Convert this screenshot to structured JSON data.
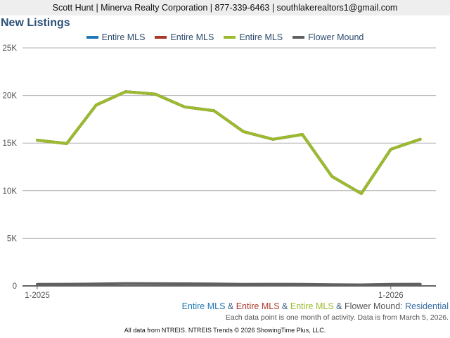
{
  "header": {
    "contact": "Scott Hunt | Minerva Realty Corporation | 877-339-6463 | southlakerealtors1@gmail.com"
  },
  "title": "New Listings",
  "legend": [
    {
      "label": "Entire MLS",
      "color": "#1f77b4"
    },
    {
      "label": "Entire MLS",
      "color": "#a8382a"
    },
    {
      "label": "Entire MLS",
      "color": "#9bbb2e"
    },
    {
      "label": "Flower Mound",
      "color": "#606060"
    }
  ],
  "caption": {
    "parts": [
      {
        "text": "Entire MLS",
        "color": "#1f77b4"
      },
      {
        "text": " & ",
        "color": "#3a5f86"
      },
      {
        "text": "Entire MLS",
        "color": "#a8382a"
      },
      {
        "text": " & ",
        "color": "#3a5f86"
      },
      {
        "text": "Entire MLS",
        "color": "#9bbb2e"
      },
      {
        "text": " & ",
        "color": "#3a5f86"
      },
      {
        "text": "Flower Mound",
        "color": "#555555"
      },
      {
        "text": ": Residential",
        "color": "#3a6ea5"
      }
    ]
  },
  "note": "Each data point is one month of activity. Data is from March 5, 2026.",
  "footer": "All data from NTREIS. NTREIS Trends © 2026 ShowingTime Plus, LLC.",
  "chart_data": {
    "type": "line",
    "title": "New Listings",
    "xlabel": "",
    "ylabel": "",
    "ylim": [
      0,
      25000
    ],
    "yticks": [
      "0",
      "5K",
      "10K",
      "15K",
      "20K",
      "25K"
    ],
    "ytick_values": [
      0,
      5000,
      10000,
      15000,
      20000,
      25000
    ],
    "xtick_labels": [
      {
        "index": 0,
        "label": "1-2025"
      },
      {
        "index": 12,
        "label": "1-2026"
      }
    ],
    "grid": true,
    "legend_position": "top",
    "x": [
      "1-2025",
      "2-2025",
      "3-2025",
      "4-2025",
      "5-2025",
      "6-2025",
      "7-2025",
      "8-2025",
      "9-2025",
      "10-2025",
      "11-2025",
      "12-2025",
      "1-2026",
      "2-2026"
    ],
    "series": [
      {
        "name": "Entire MLS",
        "color": "#1f77b4",
        "values": [
          15300,
          14950,
          19000,
          20400,
          20150,
          18800,
          18400,
          16200,
          15400,
          15900,
          11500,
          9700,
          14350,
          15400
        ]
      },
      {
        "name": "Entire MLS",
        "color": "#a8382a",
        "values": [
          15300,
          14950,
          19000,
          20400,
          20150,
          18800,
          18400,
          16200,
          15400,
          15900,
          11500,
          9700,
          14350,
          15400
        ]
      },
      {
        "name": "Entire MLS",
        "color": "#9bbb2e",
        "values": [
          15300,
          14950,
          19000,
          20400,
          20150,
          18800,
          18400,
          16200,
          15400,
          15900,
          11500,
          9700,
          14350,
          15400
        ]
      },
      {
        "name": "Flower Mound",
        "color": "#606060",
        "values": [
          170,
          180,
          200,
          240,
          230,
          220,
          200,
          170,
          180,
          170,
          130,
          110,
          170,
          180
        ]
      }
    ]
  }
}
